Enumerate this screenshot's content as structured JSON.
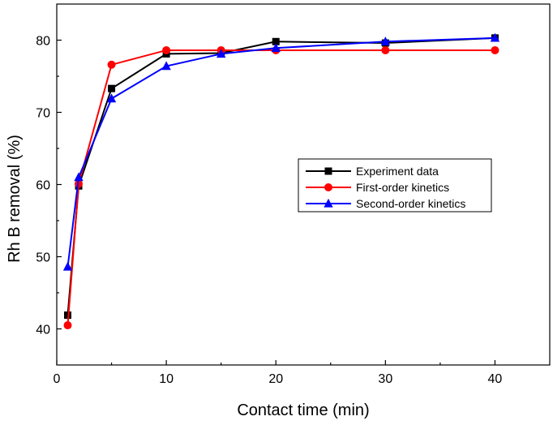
{
  "chart_data": {
    "type": "line",
    "title": "",
    "xlabel": "Contact time (min)",
    "ylabel": "Rh B removal (%)",
    "xlim": [
      0,
      45
    ],
    "ylim": [
      35,
      85
    ],
    "x_ticks": [
      0,
      10,
      20,
      30,
      40
    ],
    "y_ticks": [
      40,
      50,
      60,
      70,
      80
    ],
    "legend_position": "center-right",
    "series": [
      {
        "name": "Experiment data",
        "color": "#000000",
        "marker": "square",
        "x": [
          1,
          2,
          5,
          10,
          15,
          20,
          30,
          40
        ],
        "y": [
          41.9,
          59.8,
          73.3,
          78.1,
          78.2,
          79.8,
          79.6,
          80.3
        ]
      },
      {
        "name": "First-order kinetics",
        "color": "#ff0000",
        "marker": "circle",
        "x": [
          1,
          2,
          5,
          10,
          15,
          20,
          30,
          40
        ],
        "y": [
          40.5,
          60.1,
          76.6,
          78.6,
          78.6,
          78.6,
          78.6,
          78.6
        ]
      },
      {
        "name": "Second-order kinetics",
        "color": "#0000ff",
        "marker": "triangle",
        "x": [
          1,
          2,
          5,
          10,
          15,
          20,
          30,
          40
        ],
        "y": [
          48.6,
          61.0,
          71.9,
          76.4,
          78.1,
          78.9,
          79.8,
          80.3
        ]
      }
    ]
  }
}
